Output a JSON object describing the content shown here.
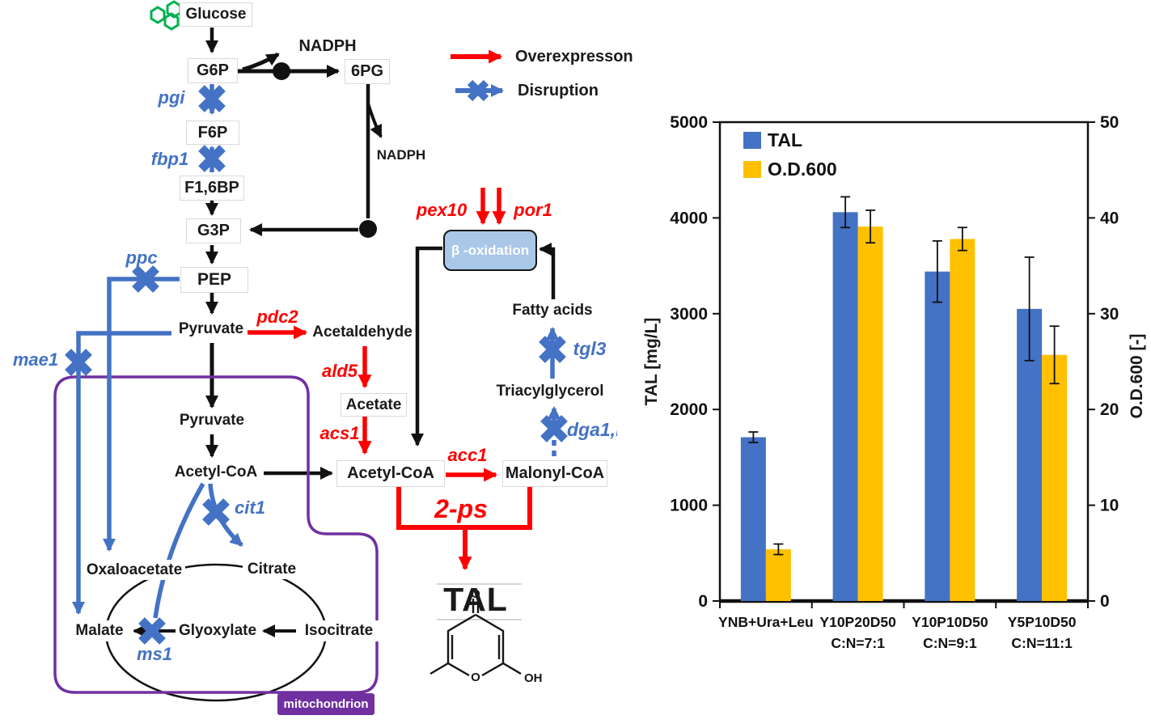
{
  "pathway": {
    "legend": {
      "overexpression": "Overexpresson",
      "disruption": "Disruption"
    },
    "metabolites": {
      "glucose": "Glucose",
      "g6p": "G6P",
      "nadph1": "NADPH",
      "six_pg": "6PG",
      "nadph2": "NADPH",
      "f6p": "F6P",
      "f16bp": "F1,6BP",
      "g3p": "G3P",
      "pep": "PEP",
      "pyruvate_cyt": "Pyruvate",
      "acetaldehyde": "Acetaldehyde",
      "acetate": "Acetate",
      "acetyl_coa_cyt": "Acetyl-CoA",
      "malonyl_coa": "Malonyl-CoA",
      "fatty_acids": "Fatty acids",
      "triacylglycerol": "Triacylglycerol",
      "pyruvate_mit": "Pyruvate",
      "acetyl_coa_mit": "Acetyl-CoA",
      "oxaloacetate": "Oxaloacetate",
      "citrate": "Citrate",
      "malate": "Malate",
      "glyoxylate": "Glyoxylate",
      "isocitrate": "Isocitrate"
    },
    "genes": {
      "pgi": "pgi",
      "fbp1": "fbp1",
      "ppc": "ppc",
      "mae1": "mae1",
      "pdc2": "pdc2",
      "ald5": "ald5",
      "acs1": "acs1",
      "acc1": "acc1",
      "two_ps": "2-ps",
      "pex10": "pex10",
      "por1": "por1",
      "tgl3": "tgl3",
      "dga1": "dga1,lr",
      "cit1": "cit1",
      "ms1": "ms1"
    },
    "compartment": "mitochondrion",
    "process": "β -oxidation",
    "product": "TAL",
    "structure": {
      "o_top": "O",
      "o_ring": "O",
      "oh": "OH"
    }
  },
  "chart_data": {
    "type": "bar",
    "categories": [
      {
        "line1": "YNB+Ura+Leu",
        "line2": ""
      },
      {
        "line1": "Y10P20D50",
        "line2": "C:N=7:1"
      },
      {
        "line1": "Y10P10D50",
        "line2": "C:N=9:1"
      },
      {
        "line1": "Y5P10D50",
        "line2": "C:N=11:1"
      }
    ],
    "series": [
      {
        "name": "TAL",
        "axis": "left",
        "color": "#4472C4",
        "values": [
          1710,
          4060,
          3440,
          3050
        ],
        "errors": [
          55,
          160,
          320,
          540
        ]
      },
      {
        "name": "O.D.600",
        "axis": "right",
        "color": "#FFC000",
        "values": [
          5.4,
          39.1,
          37.8,
          25.7
        ],
        "errors": [
          0.55,
          1.7,
          1.2,
          3.0
        ]
      }
    ],
    "y_left": {
      "label": "TAL [mg/L]",
      "min": 0,
      "max": 5000,
      "ticks": [
        0,
        1000,
        2000,
        3000,
        4000,
        5000
      ]
    },
    "y_right": {
      "label": "O.D.600 [-]",
      "min": 0,
      "max": 50,
      "ticks": [
        0,
        10,
        20,
        30,
        40,
        50
      ]
    },
    "grid": false,
    "legend_position": "top-left",
    "colors": {
      "bar_blue": "#4472C4",
      "bar_yellow": "#FFC000"
    }
  }
}
